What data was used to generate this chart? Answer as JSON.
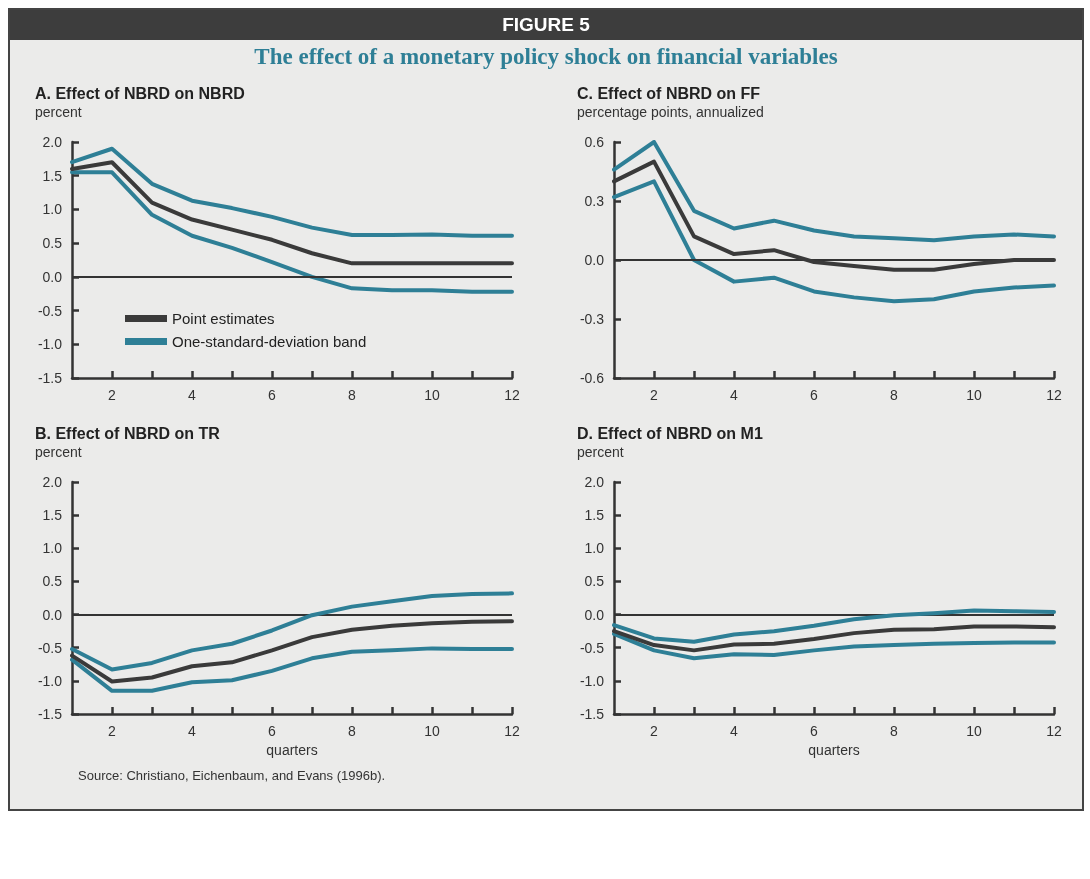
{
  "chart_data": [
    {
      "type": "line",
      "title": "A. Effect of NBRD on NBRD",
      "ylabel": "percent",
      "annotations": [
        "FIGURE 5",
        "The effect of a monetary policy shock on financial variables"
      ],
      "x": [
        1,
        2,
        3,
        4,
        5,
        6,
        7,
        8,
        9,
        10,
        11,
        12
      ],
      "series": [
        {
          "name": "Point estimates",
          "color": "#3a3a3a",
          "values": [
            1.6,
            1.7,
            1.1,
            0.85,
            0.7,
            0.55,
            0.35,
            0.2,
            0.2,
            0.2,
            0.2,
            0.2
          ]
        },
        {
          "name": "One-standard-deviation band",
          "color": "#2e7f96",
          "values": [
            1.7,
            1.9,
            1.38,
            1.13,
            1.02,
            0.89,
            0.73,
            0.62,
            0.62,
            0.63,
            0.61,
            0.61
          ]
        },
        {
          "color": "#2e7f96",
          "values": [
            1.55,
            1.55,
            0.92,
            0.61,
            0.43,
            0.22,
            0.0,
            -0.17,
            -0.2,
            -0.2,
            -0.22,
            -0.22
          ]
        }
      ],
      "xlim": [
        1,
        12
      ],
      "xticks": [
        2,
        {
          "value": 3,
          "label": null
        },
        4,
        {
          "value": 5,
          "label": null
        },
        6,
        {
          "value": 7,
          "label": null
        },
        8,
        {
          "value": 9,
          "label": null
        },
        10,
        {
          "value": 11,
          "label": null
        },
        12
      ],
      "ylim": [
        -1.5,
        2
      ],
      "yticks": [
        {
          "value": -1.5,
          "label": "-1.5"
        },
        {
          "value": -1,
          "label": "-1.0"
        },
        -0.5,
        {
          "value": 0,
          "label": "0.0"
        },
        0.5,
        {
          "value": 1,
          "label": "1.0"
        },
        1.5,
        {
          "value": 2,
          "label": "2.0"
        }
      ],
      "ref_lines": [
        {
          "axis": "y",
          "value": 0,
          "color": "#333333"
        }
      ],
      "legend": "bottom left",
      "line_style": "solid"
    },
    {
      "type": "line",
      "title": "C. Effect of NBRD on FF",
      "ylabel": "percentage points, annualized",
      "x": [
        1,
        2,
        3,
        4,
        5,
        6,
        7,
        8,
        9,
        10,
        11,
        12
      ],
      "series": [
        {
          "color": "#3a3a3a",
          "values": [
            0.4,
            0.5,
            0.12,
            0.03,
            0.05,
            -0.01,
            -0.03,
            -0.05,
            -0.05,
            -0.02,
            0.0,
            0.0
          ]
        },
        {
          "color": "#2e7f96",
          "values": [
            0.46,
            0.6,
            0.25,
            0.16,
            0.2,
            0.15,
            0.12,
            0.11,
            0.1,
            0.12,
            0.13,
            0.12
          ]
        },
        {
          "color": "#2e7f96",
          "values": [
            0.32,
            0.4,
            0.0,
            -0.11,
            -0.09,
            -0.16,
            -0.19,
            -0.21,
            -0.2,
            -0.16,
            -0.14,
            -0.13
          ]
        }
      ],
      "xlim": [
        1,
        12
      ],
      "xticks": [
        2,
        {
          "value": 3,
          "label": null
        },
        4,
        {
          "value": 5,
          "label": null
        },
        6,
        {
          "value": 7,
          "label": null
        },
        8,
        {
          "value": 9,
          "label": null
        },
        10,
        {
          "value": 11,
          "label": null
        },
        12
      ],
      "ylim": [
        -0.6,
        0.6
      ],
      "yticks": [
        -0.6,
        -0.3,
        {
          "value": 0,
          "label": "0.0"
        },
        0.3,
        0.6
      ],
      "ref_lines": [
        {
          "axis": "y",
          "value": 0,
          "color": "#333333"
        }
      ],
      "line_style": "solid"
    },
    {
      "type": "line",
      "title": "B. Effect of NBRD on TR",
      "ylabel": "percent",
      "xlabel": "quarters",
      "annotations": [
        "Source: Christiano, Eichenbaum, and Evans (1996b)."
      ],
      "x": [
        1,
        2,
        3,
        4,
        5,
        6,
        7,
        8,
        9,
        10,
        11,
        12
      ],
      "series": [
        {
          "color": "#3a3a3a",
          "values": [
            -0.62,
            -1.01,
            -0.95,
            -0.78,
            -0.72,
            -0.54,
            -0.34,
            -0.23,
            -0.17,
            -0.13,
            -0.11,
            -0.1
          ]
        },
        {
          "color": "#2e7f96",
          "values": [
            -0.52,
            -0.83,
            -0.73,
            -0.54,
            -0.44,
            -0.24,
            -0.01,
            0.12,
            0.2,
            0.28,
            0.31,
            0.32
          ]
        },
        {
          "color": "#2e7f96",
          "values": [
            -0.68,
            -1.15,
            -1.15,
            -1.02,
            -0.99,
            -0.85,
            -0.66,
            -0.56,
            -0.54,
            -0.51,
            -0.52,
            -0.52
          ]
        }
      ],
      "xlim": [
        1,
        12
      ],
      "xticks": [
        2,
        {
          "value": 3,
          "label": null
        },
        4,
        {
          "value": 5,
          "label": null
        },
        6,
        {
          "value": 7,
          "label": null
        },
        8,
        {
          "value": 9,
          "label": null
        },
        10,
        {
          "value": 11,
          "label": null
        },
        12
      ],
      "ylim": [
        -1.5,
        2
      ],
      "yticks": [
        {
          "value": -1.5,
          "label": "-1.5"
        },
        {
          "value": -1,
          "label": "-1.0"
        },
        -0.5,
        {
          "value": 0,
          "label": "0.0"
        },
        0.5,
        {
          "value": 1,
          "label": "1.0"
        },
        1.5,
        {
          "value": 2,
          "label": "2.0"
        }
      ],
      "ref_lines": [
        {
          "axis": "y",
          "value": 0,
          "color": "#333333"
        }
      ],
      "line_style": "solid"
    },
    {
      "type": "line",
      "title": "D. Effect of NBRD on M1",
      "ylabel": "percent",
      "xlabel": "quarters",
      "x": [
        1,
        2,
        3,
        4,
        5,
        6,
        7,
        8,
        9,
        10,
        11,
        12
      ],
      "series": [
        {
          "color": "#3a3a3a",
          "values": [
            -0.25,
            -0.46,
            -0.54,
            -0.45,
            -0.44,
            -0.37,
            -0.28,
            -0.23,
            -0.22,
            -0.18,
            -0.18,
            -0.19
          ]
        },
        {
          "color": "#2e7f96",
          "values": [
            -0.16,
            -0.36,
            -0.41,
            -0.3,
            -0.25,
            -0.17,
            -0.07,
            -0.01,
            0.02,
            0.06,
            0.05,
            0.04
          ]
        },
        {
          "color": "#2e7f96",
          "values": [
            -0.29,
            -0.54,
            -0.66,
            -0.6,
            -0.61,
            -0.54,
            -0.48,
            -0.46,
            -0.44,
            -0.43,
            -0.42,
            -0.42
          ]
        }
      ],
      "xlim": [
        1,
        12
      ],
      "xticks": [
        2,
        {
          "value": 3,
          "label": null
        },
        4,
        {
          "value": 5,
          "label": null
        },
        6,
        {
          "value": 7,
          "label": null
        },
        8,
        {
          "value": 9,
          "label": null
        },
        10,
        {
          "value": 11,
          "label": null
        },
        12
      ],
      "ylim": [
        -1.5,
        2
      ],
      "yticks": [
        {
          "value": -1.5,
          "label": "-1.5"
        },
        {
          "value": -1,
          "label": "-1.0"
        },
        -0.5,
        {
          "value": 0,
          "label": "0.0"
        },
        0.5,
        {
          "value": 1,
          "label": "1.0"
        },
        1.5,
        {
          "value": 2,
          "label": "2.0"
        }
      ],
      "ref_lines": [
        {
          "axis": "y",
          "value": 0,
          "color": "#333333"
        }
      ],
      "line_style": "solid"
    }
  ]
}
